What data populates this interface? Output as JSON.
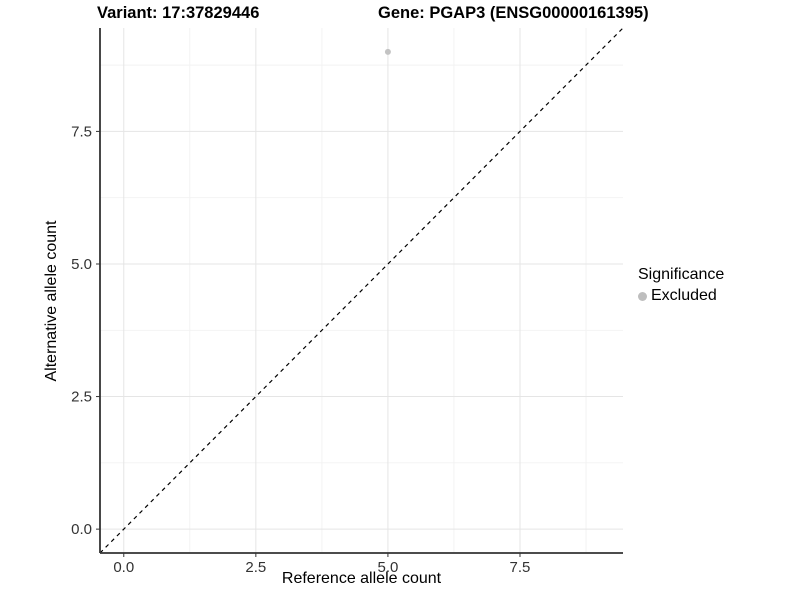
{
  "titles": {
    "variant": "Variant: 17:37829446",
    "gene": "Gene: PGAP3 (ENSG00000161395)"
  },
  "chart_data": {
    "type": "scatter",
    "xlabel": "Reference allele count",
    "ylabel": "Alternative allele count",
    "xlim": [
      -0.45,
      9.45
    ],
    "ylim": [
      -0.45,
      9.45
    ],
    "x_ticks": [
      0,
      2.5,
      5,
      7.5
    ],
    "x_tick_labels": [
      "0.0",
      "2.5",
      "5.0",
      "7.5"
    ],
    "y_ticks": [
      0,
      2.5,
      5,
      7.5
    ],
    "y_tick_labels": [
      "0.0",
      "2.5",
      "5.0",
      "7.5"
    ],
    "x_minor": [
      1.25,
      3.75,
      6.25,
      8.75
    ],
    "y_minor": [
      1.25,
      3.75,
      6.25,
      8.75
    ],
    "grid": true,
    "points": [
      {
        "x": 5,
        "y": 9,
        "series": "Excluded"
      }
    ],
    "identity_line": {
      "style": "dashed",
      "slope": 1,
      "intercept": 0
    },
    "legend": {
      "title": "Significance",
      "position": "right",
      "entries": [
        {
          "label": "Excluded",
          "color": "#bebebe",
          "marker": "circle"
        }
      ]
    }
  },
  "colors": {
    "grid_major": "#e5e5e5",
    "grid_minor": "#f2f2f2",
    "axis_line": "#333333",
    "tick_mark": "#333333",
    "tick_text": "#333333",
    "point": "#c3c3c3",
    "line": "#000000",
    "title_text": "#000000"
  }
}
